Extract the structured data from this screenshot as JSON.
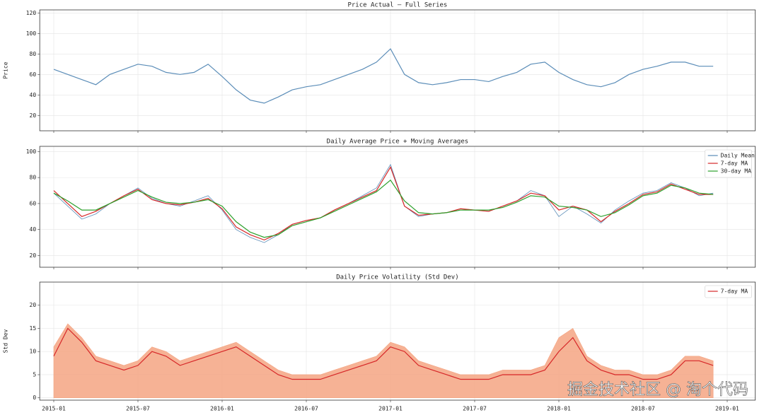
{
  "watermark": "掘金技术社区 @ 淘个代码",
  "chart_data": [
    {
      "type": "line",
      "title": "Price Actual — Full Series",
      "ylabel": "Price",
      "x": [
        "2015-01",
        "2015-02",
        "2015-03",
        "2015-04",
        "2015-05",
        "2015-06",
        "2015-07",
        "2015-08",
        "2015-09",
        "2015-10",
        "2015-11",
        "2015-12",
        "2016-01",
        "2016-02",
        "2016-03",
        "2016-04",
        "2016-05",
        "2016-06",
        "2016-07",
        "2016-08",
        "2016-09",
        "2016-10",
        "2016-11",
        "2016-12",
        "2017-01",
        "2017-02",
        "2017-03",
        "2017-04",
        "2017-05",
        "2017-06",
        "2017-07",
        "2017-08",
        "2017-09",
        "2017-10",
        "2017-11",
        "2017-12",
        "2018-01",
        "2018-02",
        "2018-03",
        "2018-04",
        "2018-05",
        "2018-06",
        "2018-07",
        "2018-08",
        "2018-09",
        "2018-10",
        "2018-11",
        "2018-12"
      ],
      "series": [
        {
          "color": "#5b8db8",
          "values": [
            65,
            60,
            55,
            50,
            60,
            65,
            70,
            68,
            62,
            60,
            62,
            70,
            58,
            45,
            35,
            32,
            38,
            45,
            48,
            50,
            55,
            60,
            65,
            72,
            85,
            60,
            52,
            50,
            52,
            55,
            55,
            53,
            58,
            62,
            70,
            72,
            62,
            55,
            50,
            48,
            52,
            60,
            65,
            68,
            72,
            72,
            68,
            68
          ]
        }
      ],
      "xlim": [
        "2014-12",
        "2019-03"
      ],
      "ylim": [
        5,
        123
      ],
      "yticks": [
        20,
        40,
        60,
        80,
        100,
        120
      ],
      "grid": true
    },
    {
      "type": "line",
      "title": "Daily Average Price + Moving Averages",
      "x": [
        "2015-01",
        "2015-02",
        "2015-03",
        "2015-04",
        "2015-05",
        "2015-06",
        "2015-07",
        "2015-08",
        "2015-09",
        "2015-10",
        "2015-11",
        "2015-12",
        "2016-01",
        "2016-02",
        "2016-03",
        "2016-04",
        "2016-05",
        "2016-06",
        "2016-07",
        "2016-08",
        "2016-09",
        "2016-10",
        "2016-11",
        "2016-12",
        "2017-01",
        "2017-02",
        "2017-03",
        "2017-04",
        "2017-05",
        "2017-06",
        "2017-07",
        "2017-08",
        "2017-09",
        "2017-10",
        "2017-11",
        "2017-12",
        "2018-01",
        "2018-02",
        "2018-03",
        "2018-04",
        "2018-05",
        "2018-06",
        "2018-07",
        "2018-08",
        "2018-09",
        "2018-10",
        "2018-11",
        "2018-12"
      ],
      "series": [
        {
          "name": "Daily Mean",
          "color": "#5b8db8",
          "values": [
            68,
            58,
            48,
            52,
            60,
            66,
            72,
            64,
            60,
            58,
            62,
            66,
            55,
            40,
            34,
            30,
            36,
            44,
            47,
            49,
            55,
            60,
            66,
            72,
            90,
            58,
            50,
            52,
            53,
            56,
            55,
            54,
            58,
            62,
            70,
            66,
            50,
            58,
            52,
            45,
            55,
            62,
            68,
            70,
            76,
            72,
            66,
            68
          ]
        },
        {
          "name": "7-day MA",
          "color": "#d62728",
          "values": [
            70,
            60,
            50,
            54,
            60,
            66,
            71,
            63,
            60,
            59,
            61,
            64,
            56,
            42,
            36,
            32,
            37,
            44,
            47,
            49,
            55,
            60,
            65,
            70,
            88,
            58,
            51,
            52,
            53,
            56,
            55,
            54,
            58,
            62,
            68,
            66,
            55,
            58,
            55,
            46,
            54,
            60,
            67,
            69,
            75,
            71,
            67,
            67
          ]
        },
        {
          "name": "30-day MA",
          "color": "#2ca02c",
          "values": [
            68,
            62,
            55,
            55,
            60,
            65,
            70,
            65,
            61,
            60,
            61,
            63,
            58,
            46,
            38,
            34,
            36,
            43,
            46,
            49,
            54,
            59,
            64,
            69,
            78,
            62,
            53,
            52,
            53,
            55,
            55,
            55,
            57,
            61,
            66,
            65,
            58,
            57,
            55,
            50,
            53,
            59,
            66,
            68,
            74,
            72,
            68,
            67
          ]
        }
      ],
      "xlim": [
        "2014-12",
        "2019-03"
      ],
      "ylim": [
        11,
        104
      ],
      "yticks": [
        20,
        40,
        60,
        80,
        100
      ],
      "grid": true,
      "legend": "upper right"
    },
    {
      "type": "area",
      "title": "Daily Price Volatility (Std Dev)",
      "ylabel": "Std Dev",
      "x": [
        "2015-01",
        "2015-02",
        "2015-03",
        "2015-04",
        "2015-05",
        "2015-06",
        "2015-07",
        "2015-08",
        "2015-09",
        "2015-10",
        "2015-11",
        "2015-12",
        "2016-01",
        "2016-02",
        "2016-03",
        "2016-04",
        "2016-05",
        "2016-06",
        "2016-07",
        "2016-08",
        "2016-09",
        "2016-10",
        "2016-11",
        "2016-12",
        "2017-01",
        "2017-02",
        "2017-03",
        "2017-04",
        "2017-05",
        "2017-06",
        "2017-07",
        "2017-08",
        "2017-09",
        "2017-10",
        "2017-11",
        "2017-12",
        "2018-01",
        "2018-02",
        "2018-03",
        "2018-04",
        "2018-05",
        "2018-06",
        "2018-07",
        "2018-08",
        "2018-09",
        "2018-10",
        "2018-11",
        "2018-12"
      ],
      "series": [
        {
          "color": "#f4a582",
          "values": [
            11,
            16,
            13,
            9,
            8,
            7,
            8,
            11,
            10,
            8,
            9,
            10,
            11,
            12,
            10,
            8,
            6,
            5,
            5,
            5,
            6,
            7,
            8,
            9,
            12,
            11,
            8,
            7,
            6,
            5,
            5,
            5,
            6,
            6,
            6,
            7,
            13,
            15,
            9,
            7,
            6,
            6,
            5,
            5,
            6,
            9,
            9,
            8
          ]
        },
        {
          "name": "7-day MA",
          "color": "#d62728",
          "values": [
            9,
            15,
            12,
            8,
            7,
            6,
            7,
            10,
            9,
            7,
            8,
            9,
            10,
            11,
            9,
            7,
            5,
            4,
            4,
            4,
            5,
            6,
            7,
            8,
            11,
            10,
            7,
            6,
            5,
            4,
            4,
            4,
            5,
            5,
            5,
            6,
            10,
            13,
            8,
            6,
            5,
            5,
            4,
            4,
            5,
            8,
            8,
            7
          ]
        }
      ],
      "xlim": [
        "2014-12",
        "2019-03"
      ],
      "ylim": [
        -0.5,
        25
      ],
      "yticks": [
        0,
        5,
        10,
        15,
        20
      ],
      "xticks": [
        "2015-01",
        "2015-07",
        "2016-01",
        "2016-07",
        "2017-01",
        "2017-07",
        "2018-01",
        "2018-07",
        "2019-01"
      ],
      "grid": true,
      "legend": "upper right"
    }
  ]
}
